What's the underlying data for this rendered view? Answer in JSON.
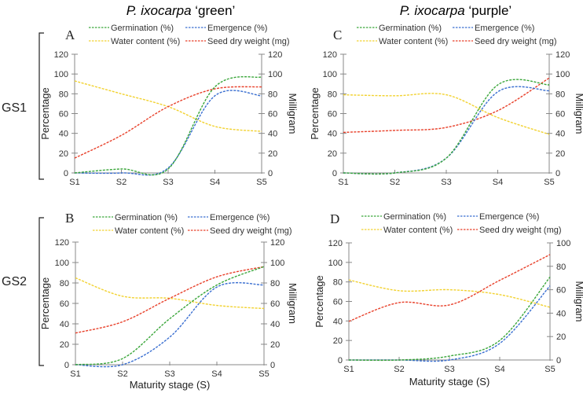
{
  "figure": {
    "column_titles": [
      {
        "species": "P. ixocarpa",
        "variety": " ‘green’"
      },
      {
        "species": "P. ixocarpa",
        "variety": " ‘purple’"
      }
    ],
    "row_labels": [
      "GS1",
      "GS2"
    ],
    "legend": {
      "germination": "Germination (%)",
      "emergence": "Emergence (%)",
      "water": "Water content (%)",
      "weight": "Seed dry weight (mg)"
    },
    "colors": {
      "germination": "#3aa63a",
      "emergence": "#3a6fd1",
      "water": "#f2d230",
      "weight": "#e8402a",
      "axis": "#888888"
    }
  },
  "chart_data": [
    {
      "panel": "A",
      "type": "line",
      "title": "P. ixocarpa ‘green’ GS1",
      "categories": [
        "S1",
        "S2",
        "S3",
        "S4",
        "S5"
      ],
      "xlabel": "",
      "ylabel": "Percentage",
      "y2label": "Milligram",
      "ylim": [
        0,
        120
      ],
      "y2lim": [
        0,
        120
      ],
      "yticks": [
        0,
        20,
        40,
        60,
        80,
        100,
        120
      ],
      "y2ticks": [
        0,
        20,
        40,
        60,
        80,
        100,
        120
      ],
      "legend_position": "top",
      "series": [
        {
          "name": "Germination (%)",
          "key": "germination",
          "axis": "left",
          "values": [
            0,
            4,
            4,
            87,
            97
          ]
        },
        {
          "name": "Emergence (%)",
          "key": "emergence",
          "axis": "left",
          "values": [
            0,
            0,
            5,
            78,
            78
          ]
        },
        {
          "name": "Water content (%)",
          "key": "water",
          "axis": "left",
          "values": [
            93,
            80,
            67,
            47,
            42
          ]
        },
        {
          "name": "Seed dry weight (mg)",
          "key": "weight",
          "axis": "right",
          "values": [
            15,
            38,
            67,
            85,
            87
          ]
        }
      ]
    },
    {
      "panel": "C",
      "type": "line",
      "title": "P. ixocarpa ‘purple’ GS1",
      "categories": [
        "S1",
        "S2",
        "S3",
        "S4",
        "S5"
      ],
      "xlabel": "",
      "ylabel": "Percentage",
      "y2label": "Milligram",
      "ylim": [
        0,
        120
      ],
      "y2lim": [
        0,
        120
      ],
      "yticks": [
        0,
        20,
        40,
        60,
        80,
        100,
        120
      ],
      "y2ticks": [
        0,
        20,
        40,
        60,
        80,
        100,
        120
      ],
      "legend_position": "top",
      "series": [
        {
          "name": "Germination (%)",
          "key": "germination",
          "axis": "left",
          "values": [
            0,
            0,
            15,
            89,
            89
          ]
        },
        {
          "name": "Emergence (%)",
          "key": "emergence",
          "axis": "left",
          "values": [
            0,
            0,
            15,
            82,
            83
          ]
        },
        {
          "name": "Water content (%)",
          "key": "water",
          "axis": "left",
          "values": [
            79,
            78,
            79,
            56,
            39
          ]
        },
        {
          "name": "Seed dry weight (mg)",
          "key": "weight",
          "axis": "right",
          "values": [
            41,
            43,
            46,
            63,
            96
          ]
        }
      ]
    },
    {
      "panel": "B",
      "type": "line",
      "title": "P. ixocarpa ‘green’ GS2",
      "categories": [
        "S1",
        "S2",
        "S3",
        "S4",
        "S5"
      ],
      "xlabel": "Maturity stage (S)",
      "ylabel": "Percentage",
      "y2label": "Milligram",
      "ylim": [
        0,
        120
      ],
      "y2lim": [
        0,
        120
      ],
      "yticks": [
        0,
        20,
        40,
        60,
        80,
        100,
        120
      ],
      "y2ticks": [
        0,
        20,
        40,
        60,
        80,
        100,
        120
      ],
      "legend_position": "top",
      "series": [
        {
          "name": "Germination (%)",
          "key": "germination",
          "axis": "left",
          "values": [
            0,
            6,
            45,
            78,
            96
          ]
        },
        {
          "name": "Emergence (%)",
          "key": "emergence",
          "axis": "left",
          "values": [
            0,
            0,
            27,
            76,
            78
          ]
        },
        {
          "name": "Water content (%)",
          "key": "water",
          "axis": "left",
          "values": [
            85,
            67,
            65,
            58,
            55
          ]
        },
        {
          "name": "Seed dry weight (mg)",
          "key": "weight",
          "axis": "right",
          "values": [
            31,
            42,
            65,
            86,
            96
          ]
        }
      ]
    },
    {
      "panel": "D",
      "type": "line",
      "title": "P. ixocarpa ‘purple’ GS2",
      "categories": [
        "S1",
        "S2",
        "S3",
        "S4",
        "S5"
      ],
      "xlabel": "Maturity stage (S)",
      "ylabel": "Percentage",
      "y2label": "Milligram",
      "ylim": [
        0,
        120
      ],
      "y2lim": [
        0,
        100
      ],
      "yticks": [
        0,
        20,
        40,
        60,
        80,
        100,
        120
      ],
      "y2ticks": [
        0,
        20,
        40,
        60,
        80,
        100
      ],
      "legend_position": "top",
      "series": [
        {
          "name": "Germination (%)",
          "key": "germination",
          "axis": "left",
          "values": [
            0,
            0,
            4,
            20,
            85
          ]
        },
        {
          "name": "Emergence (%)",
          "key": "emergence",
          "axis": "left",
          "values": [
            0,
            0,
            0,
            17,
            76
          ]
        },
        {
          "name": "Water content (%)",
          "key": "water",
          "axis": "left",
          "values": [
            82,
            71,
            72,
            67,
            54
          ]
        },
        {
          "name": "Seed dry weight (mg)",
          "key": "weight",
          "axis": "right",
          "values": [
            33,
            49,
            47,
            68,
            90
          ]
        }
      ]
    }
  ]
}
